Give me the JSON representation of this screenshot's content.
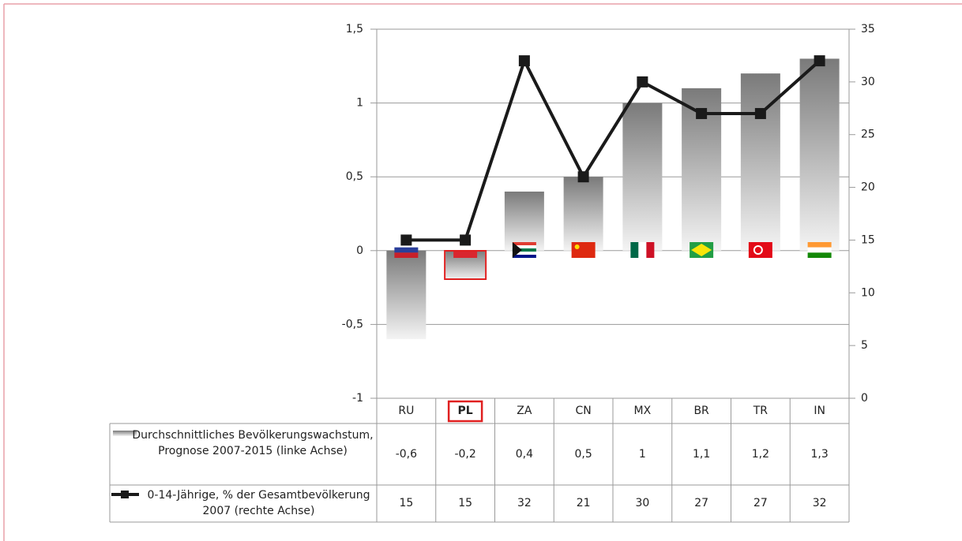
{
  "chart_data": {
    "type": "bar",
    "categories": [
      "RU",
      "PL",
      "ZA",
      "CN",
      "MX",
      "BR",
      "TR",
      "IN"
    ],
    "series": [
      {
        "name": "Durchschnittliches Bevölkerungswachstum, Prognose 2007-2015 (linke Achse)",
        "type": "bar",
        "color": "#808080",
        "values": [
          -0.6,
          -0.2,
          0.4,
          0.5,
          1,
          1.1,
          1.2,
          1.3
        ],
        "value_labels": [
          "-0,6",
          "-0,2",
          "0,4",
          "0,5",
          "1",
          "1,1",
          "1,2",
          "1,3"
        ]
      },
      {
        "name": "0-14-Jährige, % der Gesamtbevölkerung 2007 (rechte Achse)",
        "type": "line",
        "axis": "y2",
        "color": "#1a1a1a",
        "values": [
          15,
          15,
          32,
          21,
          30,
          27,
          27,
          32
        ]
      }
    ],
    "ylim": [
      -1,
      1.5
    ],
    "yticks": [
      -1,
      {
        "value": -0.5,
        "label": "-0,5"
      },
      0,
      {
        "value": 0.5,
        "label": "0,5"
      },
      1,
      {
        "value": 1.5,
        "label": "1,5"
      }
    ],
    "y2lim": [
      0,
      35
    ],
    "y2ticks": [
      0,
      5,
      10,
      15,
      20,
      25,
      30,
      35
    ],
    "grid": true
  }
}
